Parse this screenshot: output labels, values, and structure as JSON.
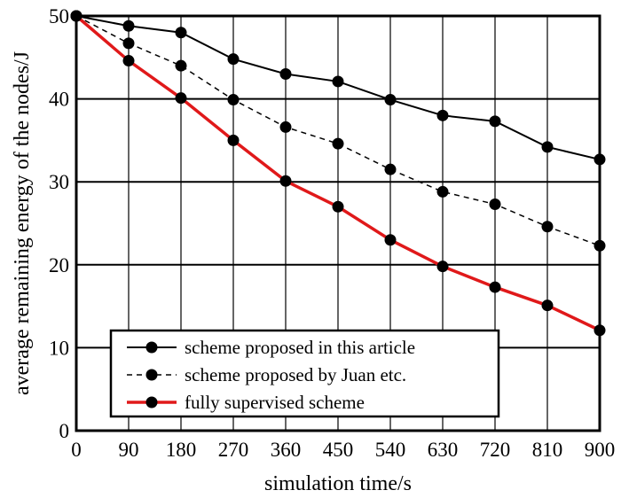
{
  "chart_data": {
    "type": "line",
    "title": "",
    "xlabel": "simulation time/s",
    "ylabel": "average remaining energy of the nodes/J",
    "x": [
      0,
      90,
      180,
      270,
      360,
      450,
      540,
      630,
      720,
      810,
      900
    ],
    "xlim": [
      0,
      900
    ],
    "ylim": [
      0,
      50
    ],
    "yticks": [
      0,
      10,
      20,
      30,
      40,
      50
    ],
    "grid": true,
    "legend_position": "bottom-left",
    "series": [
      {
        "name": "scheme proposed in this article",
        "values": [
          50,
          48.8,
          48.0,
          44.8,
          43.0,
          42.1,
          39.9,
          38.0,
          37.3,
          34.2,
          32.7
        ],
        "color": "#000000",
        "style": "solid"
      },
      {
        "name": "scheme proposed by Juan etc.",
        "values": [
          50,
          46.7,
          44.0,
          39.9,
          36.6,
          34.6,
          31.5,
          28.8,
          27.3,
          24.6,
          22.3
        ],
        "color": "#000000",
        "style": "dashed"
      },
      {
        "name": "fully supervised scheme",
        "values": [
          50,
          44.6,
          40.1,
          35.0,
          30.1,
          27.0,
          23.0,
          19.8,
          17.3,
          15.1,
          12.1
        ],
        "color": "#e0191a",
        "style": "solid"
      }
    ]
  }
}
